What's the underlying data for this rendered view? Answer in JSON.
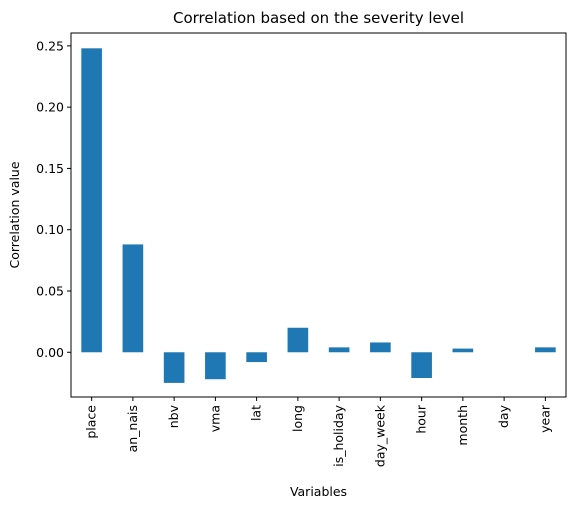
{
  "chart_data": {
    "type": "bar",
    "title": "Correlation based on the severity level",
    "xlabel": "Variables",
    "ylabel": "Correlation value",
    "categories": [
      "place",
      "an_nais",
      "nbv",
      "vma",
      "lat",
      "long",
      "is_holiday",
      "day_week",
      "hour",
      "month",
      "day",
      "year"
    ],
    "values": [
      0.248,
      0.088,
      -0.025,
      -0.022,
      -0.008,
      0.02,
      0.004,
      0.008,
      -0.021,
      0.003,
      0.0,
      0.004
    ],
    "yticks": [
      0.0,
      0.05,
      0.1,
      0.15,
      0.2,
      0.25
    ],
    "ytick_labels": [
      "0.00",
      "0.05",
      "0.10",
      "0.15",
      "0.20",
      "0.25"
    ],
    "ylim": [
      -0.0365,
      0.2605
    ],
    "grid": false,
    "bar_color": "#1f77b4"
  }
}
